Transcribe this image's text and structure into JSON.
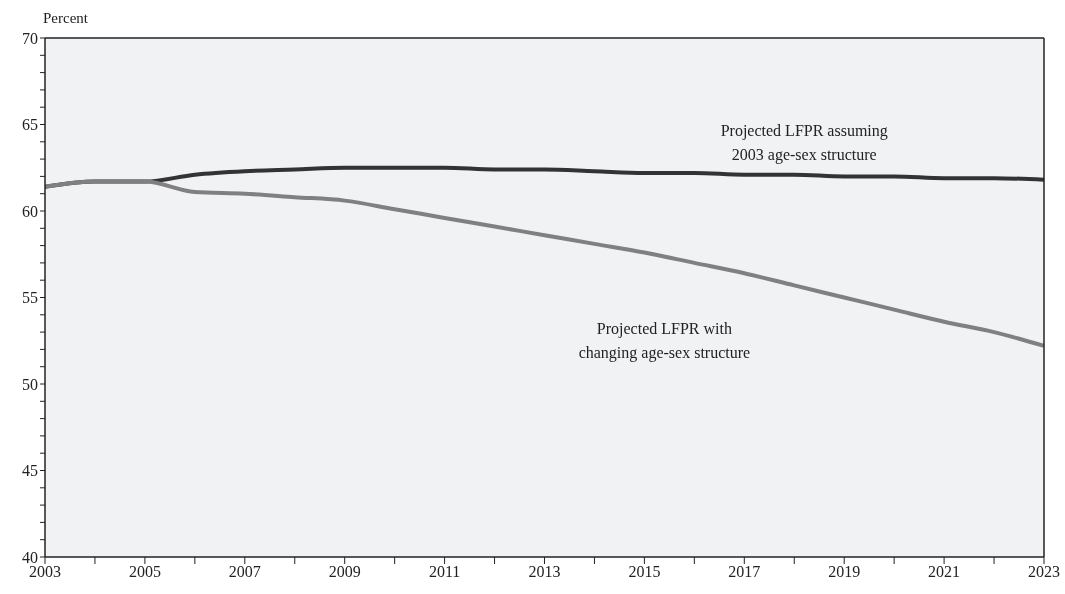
{
  "chart_data": {
    "type": "line",
    "ylabel": "Percent",
    "x": [
      2003,
      2004,
      2005,
      2006,
      2007,
      2008,
      2009,
      2010,
      2011,
      2012,
      2013,
      2014,
      2015,
      2016,
      2017,
      2018,
      2019,
      2020,
      2021,
      2022,
      2023
    ],
    "series": [
      {
        "name": "Projected LFPR assuming\n2003 age-sex structure",
        "color": "#333333",
        "values": [
          61.4,
          61.7,
          61.7,
          62.1,
          62.3,
          62.4,
          62.5,
          62.5,
          62.5,
          62.4,
          62.4,
          62.3,
          62.2,
          62.2,
          62.1,
          62.1,
          62.0,
          62.0,
          61.9,
          61.9,
          61.8
        ]
      },
      {
        "name": "Projected LFPR with\nchanging age-sex structure",
        "color": "#808083",
        "values": [
          61.4,
          61.7,
          61.7,
          61.1,
          61.0,
          60.8,
          60.6,
          60.1,
          59.6,
          59.1,
          58.6,
          58.1,
          57.6,
          57.0,
          56.4,
          55.7,
          55.0,
          54.3,
          53.6,
          53.0,
          52.2
        ]
      }
    ],
    "xlim": [
      2003,
      2023
    ],
    "xticks": [
      2003,
      {
        "value": 2004,
        "label": null
      },
      2005,
      {
        "value": 2006,
        "label": null
      },
      2007,
      {
        "value": 2008,
        "label": null
      },
      2009,
      {
        "value": 2010,
        "label": null
      },
      2011,
      {
        "value": 2012,
        "label": null
      },
      2013,
      {
        "value": 2014,
        "label": null
      },
      2015,
      {
        "value": 2016,
        "label": null
      },
      2017,
      {
        "value": 2018,
        "label": null
      },
      2019,
      {
        "value": 2020,
        "label": null
      },
      2021,
      {
        "value": 2022,
        "label": null
      },
      2023
    ],
    "ylim": [
      40,
      70
    ],
    "yticks": [
      40,
      {
        "value": 41,
        "label": null
      },
      {
        "value": 42,
        "label": null
      },
      {
        "value": 43,
        "label": null
      },
      {
        "value": 44,
        "label": null
      },
      45,
      {
        "value": 46,
        "label": null
      },
      {
        "value": 47,
        "label": null
      },
      {
        "value": 48,
        "label": null
      },
      {
        "value": 49,
        "label": null
      },
      50,
      {
        "value": 51,
        "label": null
      },
      {
        "value": 52,
        "label": null
      },
      {
        "value": 53,
        "label": null
      },
      {
        "value": 54,
        "label": null
      },
      55,
      {
        "value": 56,
        "label": null
      },
      {
        "value": 57,
        "label": null
      },
      {
        "value": 58,
        "label": null
      },
      {
        "value": 59,
        "label": null
      },
      60,
      {
        "value": 61,
        "label": null
      },
      {
        "value": 62,
        "label": null
      },
      {
        "value": 63,
        "label": null
      },
      {
        "value": 64,
        "label": null
      },
      65,
      {
        "value": 66,
        "label": null
      },
      {
        "value": 67,
        "label": null
      },
      {
        "value": 68,
        "label": null
      },
      {
        "value": 69,
        "label": null
      },
      70
    ],
    "marker": "none",
    "line_style": "solid"
  }
}
